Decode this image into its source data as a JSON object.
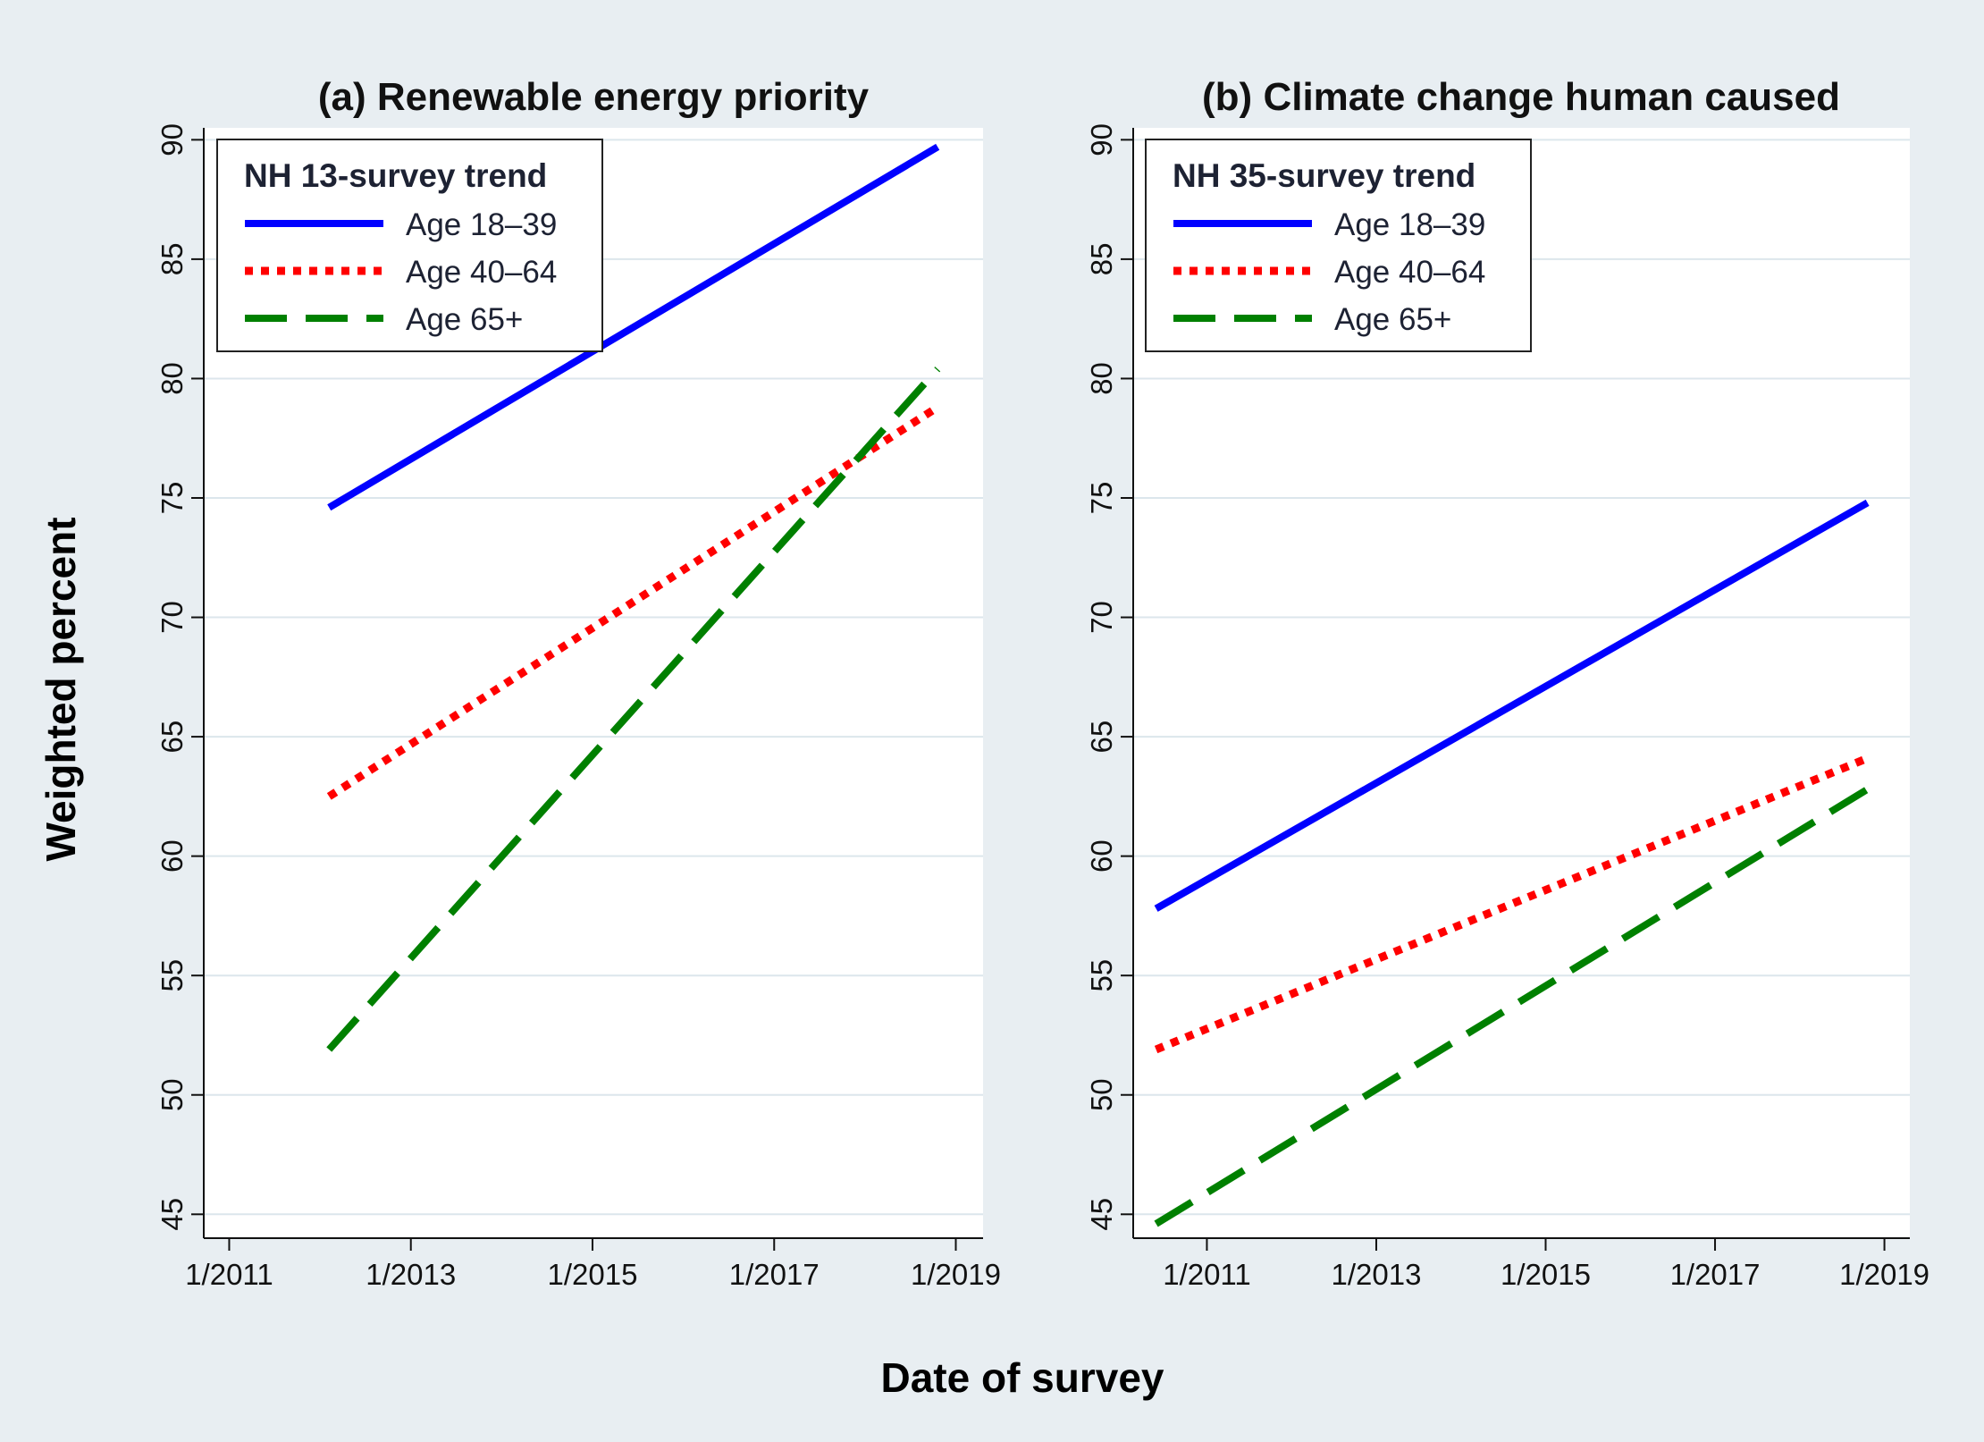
{
  "figure": {
    "ylabel": "Weighted percent",
    "xlabel": "Date of survey",
    "background_color": "#e8eef2",
    "plot_background_color": "#ffffff",
    "grid_color": "#dce6ec"
  },
  "chart_data": [
    {
      "type": "line",
      "title": "(a)  Renewable energy priority",
      "ylabel": "Weighted percent",
      "xlabel": "Date of survey",
      "ylim": [
        44,
        90.5
      ],
      "yticks": [
        45,
        50,
        55,
        60,
        65,
        70,
        75,
        80,
        85,
        90
      ],
      "xlim": [
        2010.72,
        2019.3
      ],
      "xticks": [
        {
          "value": 2011,
          "label": "1/2011"
        },
        {
          "value": 2013,
          "label": "1/2013"
        },
        {
          "value": 2015,
          "label": "1/2015"
        },
        {
          "value": 2017,
          "label": "1/2017"
        },
        {
          "value": 2019,
          "label": "1/2019"
        }
      ],
      "grid": true,
      "legend": {
        "title": "NH 13-survey trend",
        "placement": "top-left"
      },
      "series": [
        {
          "name": "Age 18–39",
          "color": "#0000ff",
          "style": "solid",
          "x": [
            2012.1,
            2018.8
          ],
          "y": [
            74.6,
            89.7
          ]
        },
        {
          "name": "Age 40–64",
          "color": "#ff0000",
          "style": "dotted",
          "x": [
            2012.1,
            2018.8
          ],
          "y": [
            62.5,
            78.8
          ]
        },
        {
          "name": "Age 65+",
          "color": "#008000",
          "style": "dashed",
          "x": [
            2012.1,
            2018.8
          ],
          "y": [
            51.9,
            80.4
          ]
        }
      ]
    },
    {
      "type": "line",
      "title": "(b)  Climate change human caused",
      "ylabel": "Weighted percent",
      "xlabel": "Date of survey",
      "ylim": [
        44,
        90.5
      ],
      "yticks": [
        45,
        50,
        55,
        60,
        65,
        70,
        75,
        80,
        85,
        90
      ],
      "xlim": [
        2010.13,
        2019.3
      ],
      "xticks": [
        {
          "value": 2011,
          "label": "1/2011"
        },
        {
          "value": 2013,
          "label": "1/2013"
        },
        {
          "value": 2015,
          "label": "1/2015"
        },
        {
          "value": 2017,
          "label": "1/2017"
        },
        {
          "value": 2019,
          "label": "1/2019"
        }
      ],
      "grid": true,
      "legend": {
        "title": "NH 35-survey trend",
        "placement": "top-left"
      },
      "series": [
        {
          "name": "Age 18–39",
          "color": "#0000ff",
          "style": "solid",
          "x": [
            2010.4,
            2018.8
          ],
          "y": [
            57.8,
            74.8
          ]
        },
        {
          "name": "Age 40–64",
          "color": "#ff0000",
          "style": "dotted",
          "x": [
            2010.4,
            2018.8
          ],
          "y": [
            51.9,
            64.1
          ]
        },
        {
          "name": "Age 65+",
          "color": "#008000",
          "style": "dashed",
          "x": [
            2010.4,
            2018.8
          ],
          "y": [
            44.6,
            62.8
          ]
        }
      ]
    }
  ]
}
